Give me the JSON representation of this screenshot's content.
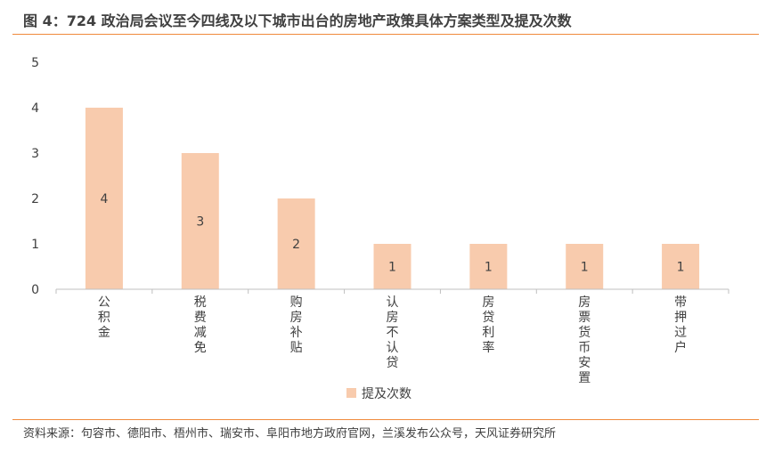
{
  "header": {
    "title": "图 4：724 政治局会议至今四线及以下城市出台的房地产政策具体方案类型及提及次数",
    "accent_color": "#f08a3c"
  },
  "footer": {
    "source": "资料来源：句容市、德阳市、梧州市、瑞安市、阜阳市地方政府官网，兰溪发布公众号，天风证券研究所"
  },
  "chart_data": {
    "type": "bar",
    "categories": [
      "公积金",
      "税费减免",
      "购房补贴",
      "认房不认贷",
      "房贷利率",
      "房票货币安置",
      "带押过户"
    ],
    "series": [
      {
        "name": "提及次数",
        "values": [
          4,
          3,
          2,
          1,
          1,
          1,
          1
        ],
        "color": "#f8cbad"
      }
    ],
    "yticks": [
      "0",
      "1",
      "2",
      "3",
      "4",
      "5"
    ],
    "ylim": [
      0,
      5
    ],
    "data_labels": [
      "4",
      "3",
      "2",
      "1",
      "1",
      "1",
      "1"
    ],
    "xlabel": "",
    "ylabel": "",
    "grid": false,
    "legend_position": "bottom",
    "category_label_orientation": "vertical"
  }
}
